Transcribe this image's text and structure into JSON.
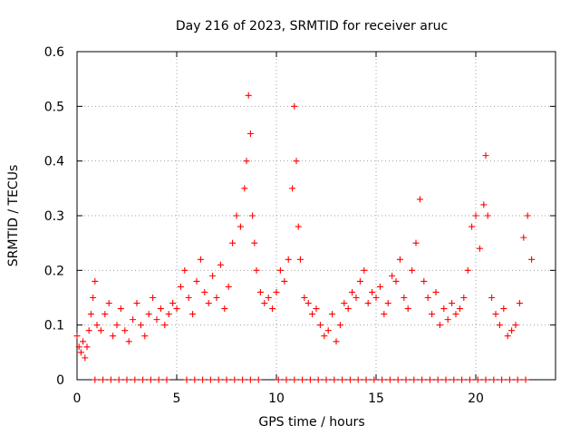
{
  "chart_data": {
    "type": "scatter",
    "title": "Day 216 of 2023, SRMTID for receiver aruc",
    "xlabel": "GPS time / hours",
    "ylabel": "SRMTID / TECUs",
    "xlim": [
      0,
      24
    ],
    "ylim": [
      0,
      0.6
    ],
    "xticks": [
      0,
      5,
      10,
      15,
      20
    ],
    "yticks": [
      0,
      0.1,
      0.2,
      0.3,
      0.4,
      0.5,
      0.6
    ],
    "xtick_labels": [
      "0",
      "5",
      "10",
      "15",
      "20"
    ],
    "ytick_labels": [
      "0",
      "0.1",
      "0.2",
      "0.3",
      "0.4",
      "0.5",
      "0.6"
    ],
    "grid": true,
    "marker": "+",
    "series": [
      {
        "name": "SRMTID",
        "color": "#ff0000",
        "x": [
          0.0,
          0.1,
          0.2,
          0.3,
          0.4,
          0.5,
          0.6,
          0.7,
          0.8,
          0.9,
          1.0,
          1.2,
          1.4,
          1.6,
          1.8,
          2.0,
          2.2,
          2.4,
          2.6,
          2.8,
          3.0,
          3.2,
          3.4,
          3.6,
          3.8,
          4.0,
          4.2,
          4.4,
          4.6,
          4.8,
          5.0,
          5.2,
          5.4,
          5.6,
          5.8,
          6.0,
          6.2,
          6.4,
          6.6,
          6.8,
          7.0,
          7.2,
          7.4,
          7.6,
          7.8,
          8.0,
          8.2,
          8.4,
          8.5,
          8.6,
          8.7,
          8.8,
          8.9,
          9.0,
          9.2,
          9.4,
          9.6,
          9.8,
          10.0,
          10.2,
          10.4,
          10.6,
          10.8,
          10.9,
          11.0,
          11.1,
          11.2,
          11.4,
          11.6,
          11.8,
          12.0,
          12.2,
          12.4,
          12.6,
          12.8,
          13.0,
          13.2,
          13.4,
          13.6,
          13.8,
          14.0,
          14.2,
          14.4,
          14.6,
          14.8,
          15.0,
          15.2,
          15.4,
          15.6,
          15.8,
          16.0,
          16.2,
          16.4,
          16.6,
          16.8,
          17.0,
          17.2,
          17.4,
          17.6,
          17.8,
          18.0,
          18.2,
          18.4,
          18.6,
          18.8,
          19.0,
          19.2,
          19.4,
          19.6,
          19.8,
          20.0,
          20.2,
          20.4,
          20.5,
          20.6,
          20.8,
          21.0,
          21.2,
          21.4,
          21.6,
          21.8,
          22.0,
          22.2,
          22.4,
          22.6,
          22.8
        ],
        "y": [
          0.08,
          0.06,
          0.05,
          0.07,
          0.04,
          0.06,
          0.09,
          0.12,
          0.15,
          0.18,
          0.1,
          0.09,
          0.12,
          0.14,
          0.08,
          0.1,
          0.13,
          0.09,
          0.07,
          0.11,
          0.14,
          0.1,
          0.08,
          0.12,
          0.15,
          0.11,
          0.13,
          0.1,
          0.12,
          0.14,
          0.13,
          0.17,
          0.2,
          0.15,
          0.12,
          0.18,
          0.22,
          0.16,
          0.14,
          0.19,
          0.15,
          0.21,
          0.13,
          0.17,
          0.25,
          0.3,
          0.28,
          0.35,
          0.4,
          0.52,
          0.45,
          0.3,
          0.25,
          0.2,
          0.16,
          0.14,
          0.15,
          0.13,
          0.16,
          0.2,
          0.18,
          0.22,
          0.35,
          0.5,
          0.4,
          0.28,
          0.22,
          0.15,
          0.14,
          0.12,
          0.13,
          0.1,
          0.08,
          0.09,
          0.12,
          0.07,
          0.1,
          0.14,
          0.13,
          0.16,
          0.15,
          0.18,
          0.2,
          0.14,
          0.16,
          0.15,
          0.17,
          0.12,
          0.14,
          0.19,
          0.18,
          0.22,
          0.15,
          0.13,
          0.2,
          0.25,
          0.33,
          0.18,
          0.15,
          0.12,
          0.16,
          0.1,
          0.13,
          0.11,
          0.14,
          0.12,
          0.13,
          0.15,
          0.2,
          0.28,
          0.3,
          0.24,
          0.32,
          0.41,
          0.3,
          0.15,
          0.12,
          0.1,
          0.13,
          0.08,
          0.09,
          0.1,
          0.14,
          0.26,
          0.3,
          0.22
        ],
        "baseline_x": [
          0.9,
          1.3,
          1.7,
          2.1,
          2.5,
          2.9,
          3.3,
          3.7,
          4.1,
          4.5,
          5.5,
          5.9,
          6.3,
          6.7,
          7.1,
          7.5,
          7.9,
          8.3,
          8.7,
          9.1,
          10.1,
          10.5,
          10.9,
          11.3,
          11.7,
          12.1,
          12.5,
          12.9,
          13.3,
          13.7,
          14.1,
          14.5,
          14.9,
          15.3,
          15.7,
          16.1,
          16.5,
          16.9,
          17.3,
          17.7,
          18.1,
          18.5,
          18.9,
          19.3,
          19.7,
          20.1,
          20.5,
          20.9,
          21.3,
          21.7,
          22.1,
          22.5
        ],
        "baseline_y": 0.0
      }
    ]
  }
}
